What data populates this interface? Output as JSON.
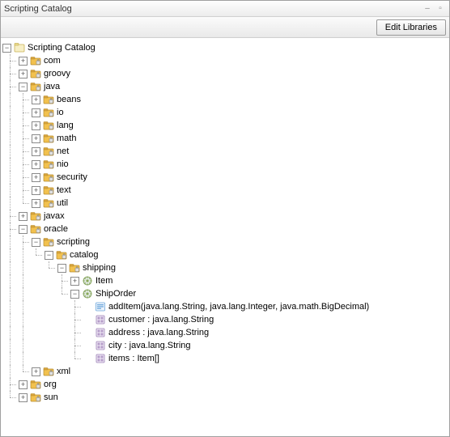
{
  "window": {
    "title": "Scripting Catalog"
  },
  "toolbar": {
    "edit_libraries": "Edit Libraries"
  },
  "colors": {
    "pkg_body": "#f2c14e",
    "pkg_flap": "#d9a43b",
    "pkg_lock": "#e0e0e0",
    "class_gear": "#8aa85a",
    "method": "#6fa8dc",
    "field": "#b49bc8"
  },
  "tree": {
    "root": {
      "label": "Scripting Catalog",
      "expanded": true
    },
    "nodes": [
      {
        "depth": 1,
        "type": "pkg",
        "state": "plus",
        "label": "com",
        "last": false
      },
      {
        "depth": 1,
        "type": "pkg",
        "state": "plus",
        "label": "groovy",
        "last": false
      },
      {
        "depth": 1,
        "type": "pkg",
        "state": "minus",
        "label": "java",
        "last": false
      },
      {
        "depth": 2,
        "type": "pkg",
        "state": "plus",
        "label": "beans",
        "last": false,
        "pline": [
          true
        ]
      },
      {
        "depth": 2,
        "type": "pkg",
        "state": "plus",
        "label": "io",
        "last": false,
        "pline": [
          true
        ]
      },
      {
        "depth": 2,
        "type": "pkg",
        "state": "plus",
        "label": "lang",
        "last": false,
        "pline": [
          true
        ]
      },
      {
        "depth": 2,
        "type": "pkg",
        "state": "plus",
        "label": "math",
        "last": false,
        "pline": [
          true
        ]
      },
      {
        "depth": 2,
        "type": "pkg",
        "state": "plus",
        "label": "net",
        "last": false,
        "pline": [
          true
        ]
      },
      {
        "depth": 2,
        "type": "pkg",
        "state": "plus",
        "label": "nio",
        "last": false,
        "pline": [
          true
        ]
      },
      {
        "depth": 2,
        "type": "pkg",
        "state": "plus",
        "label": "security",
        "last": false,
        "pline": [
          true
        ]
      },
      {
        "depth": 2,
        "type": "pkg",
        "state": "plus",
        "label": "text",
        "last": false,
        "pline": [
          true
        ]
      },
      {
        "depth": 2,
        "type": "pkg",
        "state": "plus",
        "label": "util",
        "last": true,
        "pline": [
          true
        ]
      },
      {
        "depth": 1,
        "type": "pkg",
        "state": "plus",
        "label": "javax",
        "last": false
      },
      {
        "depth": 1,
        "type": "pkg",
        "state": "minus",
        "label": "oracle",
        "last": false
      },
      {
        "depth": 2,
        "type": "pkg",
        "state": "minus",
        "label": "scripting",
        "last": false,
        "pline": [
          true
        ]
      },
      {
        "depth": 3,
        "type": "pkg",
        "state": "minus",
        "label": "catalog",
        "last": true,
        "pline": [
          true,
          true
        ]
      },
      {
        "depth": 4,
        "type": "pkg",
        "state": "minus",
        "label": "shipping",
        "last": true,
        "pline": [
          true,
          true,
          false
        ]
      },
      {
        "depth": 5,
        "type": "cls",
        "state": "plus",
        "label": "Item",
        "last": false,
        "pline": [
          true,
          true,
          false,
          false
        ]
      },
      {
        "depth": 5,
        "type": "cls",
        "state": "minus",
        "label": "ShipOrder",
        "last": true,
        "pline": [
          true,
          true,
          false,
          false
        ]
      },
      {
        "depth": 6,
        "type": "mth",
        "state": "none",
        "label": "addItem(java.lang.String, java.lang.Integer, java.math.BigDecimal)",
        "last": false,
        "pline": [
          true,
          true,
          false,
          false,
          false
        ]
      },
      {
        "depth": 6,
        "type": "fld",
        "state": "none",
        "label": "customer : java.lang.String",
        "last": false,
        "pline": [
          true,
          true,
          false,
          false,
          false
        ]
      },
      {
        "depth": 6,
        "type": "fld",
        "state": "none",
        "label": "address : java.lang.String",
        "last": false,
        "pline": [
          true,
          true,
          false,
          false,
          false
        ]
      },
      {
        "depth": 6,
        "type": "fld",
        "state": "none",
        "label": "city : java.lang.String",
        "last": false,
        "pline": [
          true,
          true,
          false,
          false,
          false
        ]
      },
      {
        "depth": 6,
        "type": "fld",
        "state": "none",
        "label": "items : Item[]",
        "last": true,
        "pline": [
          true,
          true,
          false,
          false,
          false
        ]
      },
      {
        "depth": 2,
        "type": "pkg",
        "state": "plus",
        "label": "xml",
        "last": true,
        "pline": [
          true
        ]
      },
      {
        "depth": 1,
        "type": "pkg",
        "state": "plus",
        "label": "org",
        "last": false
      },
      {
        "depth": 1,
        "type": "pkg",
        "state": "plus",
        "label": "sun",
        "last": true
      }
    ]
  }
}
